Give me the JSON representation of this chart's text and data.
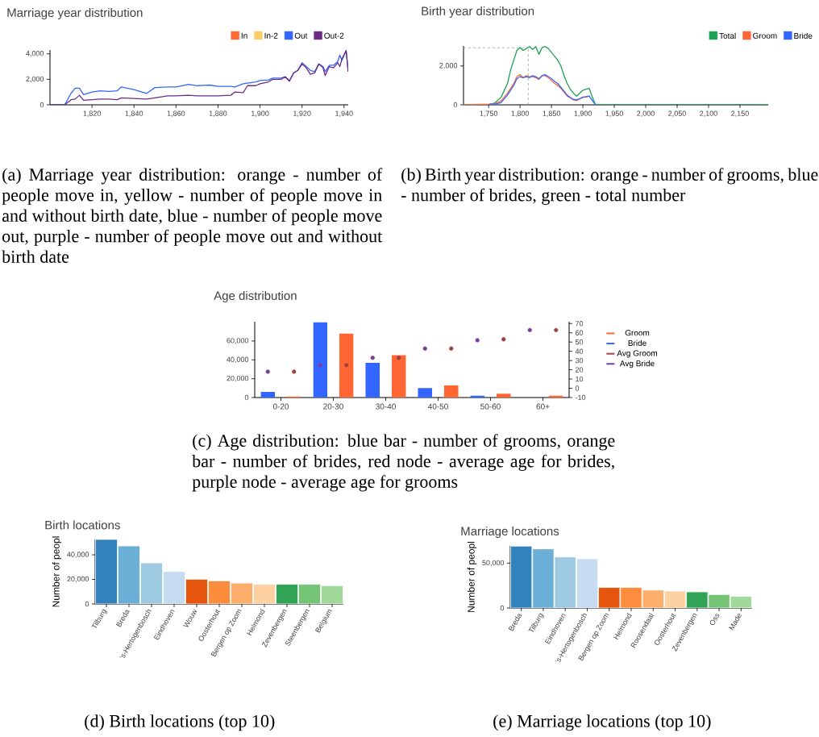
{
  "chart_data": [
    {
      "type": "line",
      "title": "Marriage year distribution",
      "legend": "top right",
      "x": [
        1800,
        1807,
        1810,
        1812,
        1814,
        1816,
        1820,
        1824,
        1828,
        1832,
        1834,
        1840,
        1846,
        1850,
        1856,
        1860,
        1866,
        1870,
        1876,
        1880,
        1886,
        1888,
        1892,
        1894,
        1898,
        1900,
        1904,
        1906,
        1910,
        1912,
        1914,
        1916,
        1918,
        1920,
        1922,
        1924,
        1926,
        1928,
        1930,
        1931,
        1933,
        1935,
        1937,
        1938,
        1939,
        1941,
        1942
      ],
      "series": [
        {
          "name": "In",
          "color": "#ff6a33",
          "values": [
            null,
            null,
            null,
            null,
            null,
            null,
            null,
            null,
            null,
            null,
            null,
            null,
            null,
            null,
            null,
            null,
            null,
            null,
            null,
            null,
            null,
            null,
            null,
            null,
            null,
            null,
            null,
            null,
            null,
            null,
            null,
            null,
            null,
            null,
            null,
            null,
            null,
            null,
            null,
            null,
            null,
            null,
            null,
            null,
            null,
            null,
            null
          ]
        },
        {
          "name": "In-2",
          "color": "#ffcc66",
          "values": [
            null,
            null,
            null,
            null,
            null,
            null,
            null,
            null,
            null,
            null,
            null,
            null,
            null,
            null,
            null,
            null,
            null,
            null,
            null,
            null,
            null,
            null,
            null,
            null,
            null,
            null,
            null,
            null,
            null,
            null,
            null,
            null,
            null,
            null,
            null,
            null,
            null,
            null,
            null,
            null,
            null,
            null,
            null,
            null,
            null,
            null,
            null
          ]
        },
        {
          "name": "Out",
          "color": "#3366ff",
          "values": [
            0,
            0,
            900,
            1300,
            1300,
            800,
            1000,
            1100,
            1050,
            1100,
            1400,
            1200,
            900,
            1350,
            1400,
            1400,
            1600,
            1500,
            1550,
            1450,
            1450,
            1400,
            1650,
            1700,
            1800,
            1900,
            1950,
            2100,
            2100,
            2200,
            1900,
            2500,
            2700,
            3300,
            3000,
            2700,
            2600,
            3200,
            3000,
            2600,
            3100,
            3100,
            3400,
            3900,
            3500,
            4250,
            2600
          ]
        },
        {
          "name": "Out-2",
          "color": "#6b2c80",
          "values": [
            0,
            0,
            400,
            450,
            750,
            350,
            400,
            450,
            450,
            400,
            550,
            500,
            450,
            550,
            700,
            700,
            750,
            700,
            700,
            700,
            750,
            1000,
            950,
            1500,
            1500,
            1650,
            1800,
            2000,
            2000,
            2200,
            1850,
            2500,
            2700,
            3200,
            2900,
            2400,
            2500,
            3200,
            2900,
            2300,
            3000,
            2900,
            3300,
            3000,
            3600,
            4250,
            2600
          ]
        }
      ],
      "xlim": [
        1800,
        1942
      ],
      "ylim": [
        0,
        4300
      ],
      "xticks": [
        {
          "value": 1820,
          "label": "1,820"
        },
        {
          "value": 1840,
          "label": "1,840"
        },
        {
          "value": 1860,
          "label": "1,860"
        },
        {
          "value": 1880,
          "label": "1,880"
        },
        {
          "value": 1900,
          "label": "1,900"
        },
        {
          "value": 1920,
          "label": "1,920"
        },
        {
          "value": 1940,
          "label": "1,940"
        }
      ],
      "yticks": [
        0,
        {
          "value": 2000,
          "label": "2,000"
        },
        {
          "value": 4000,
          "label": "4,000"
        }
      ],
      "annotations": [
        "(a) Marriage year distribution: orange - number of people move in, yellow - number of people move in and without birth date, blue - number of people move out, purple - number of people move out and without birth date"
      ]
    },
    {
      "type": "line",
      "title": "Birth year distribution",
      "legend": "top right",
      "x": [
        1710,
        1750,
        1760,
        1770,
        1780,
        1785,
        1790,
        1795,
        1800,
        1805,
        1810,
        1815,
        1820,
        1825,
        1830,
        1835,
        1840,
        1845,
        1850,
        1855,
        1860,
        1865,
        1870,
        1875,
        1880,
        1885,
        1890,
        1895,
        1900,
        1905,
        1910,
        1915,
        1920,
        2195
      ],
      "series": [
        {
          "name": "Total",
          "color": "#1ba353",
          "values": [
            0,
            0,
            100,
            400,
            1100,
            1800,
            2300,
            2800,
            2950,
            2800,
            2900,
            3000,
            2850,
            3000,
            2600,
            2950,
            3000,
            2900,
            2700,
            2500,
            2300,
            2000,
            1500,
            1100,
            800,
            600,
            450,
            600,
            750,
            800,
            850,
            400,
            0,
            0
          ]
        },
        {
          "name": "Groom",
          "color": "#ff6633",
          "values": [
            0,
            30,
            60,
            200,
            600,
            850,
            1100,
            1450,
            1550,
            1400,
            1500,
            1450,
            1450,
            1400,
            1300,
            1500,
            1500,
            1400,
            1250,
            1100,
            1000,
            850,
            650,
            450,
            350,
            250,
            220,
            300,
            380,
            400,
            450,
            null,
            null,
            null
          ]
        },
        {
          "name": "Bride",
          "color": "#3366ff",
          "values": [
            null,
            10,
            30,
            120,
            500,
            750,
            1000,
            1350,
            1450,
            1400,
            1450,
            1400,
            1500,
            1450,
            1350,
            1500,
            1550,
            1450,
            1350,
            1200,
            1100,
            900,
            700,
            500,
            380,
            280,
            250,
            320,
            400,
            420,
            450,
            220,
            0,
            null
          ]
        }
      ],
      "xlim": [
        1710,
        2195
      ],
      "ylim": [
        0,
        3030
      ],
      "xticks": [
        {
          "value": 1750,
          "label": "1,750"
        },
        {
          "value": 1800,
          "label": "1,800"
        },
        {
          "value": 1850,
          "label": "1,850"
        },
        {
          "value": 1900,
          "label": "1,900"
        },
        {
          "value": 1950,
          "label": "1,950"
        },
        {
          "value": 2000,
          "label": "2,000"
        },
        {
          "value": 2050,
          "label": "2,050"
        },
        {
          "value": 2100,
          "label": "2,100"
        },
        {
          "value": 2150,
          "label": "2,150"
        }
      ],
      "yticks": [
        0,
        {
          "value": 2000,
          "label": "2,000"
        }
      ],
      "ref_lines": [
        {
          "axis": "x",
          "value": 1813,
          "color": "#999999",
          "line_style": "dashed"
        },
        {
          "axis": "y",
          "value": 2940,
          "color": "#999999",
          "line_style": "dashed"
        }
      ],
      "annotations": [
        "(b) Birth year distribution: orange - number of grooms, blue - number of brides, green - total number"
      ]
    },
    {
      "type": "bar",
      "title": "Age distribution",
      "legend": "right",
      "categories": [
        "0-20",
        "20-30",
        "30-40",
        "40-50",
        "50-60",
        "60+"
      ],
      "series": [
        {
          "name": "Groom",
          "color": "#ff6633",
          "values": [
            1000,
            68000,
            45000,
            13000,
            4000,
            2000
          ]
        },
        {
          "name": "Bride",
          "color": "#3366ff",
          "values": [
            6000,
            80000,
            37000,
            10000,
            2000,
            0
          ]
        },
        {
          "name": "Avg Groom",
          "type": "scatter",
          "axis": "y2",
          "color": "#a0413f",
          "values": [
            18,
            25,
            33,
            43,
            53,
            63
          ]
        },
        {
          "name": "Avg Bride",
          "type": "scatter",
          "axis": "y2",
          "color": "#7b3f9a",
          "values": [
            18,
            25,
            33,
            43,
            52,
            63
          ]
        }
      ],
      "ylim": [
        0,
        80500
      ],
      "yticks": [
        0,
        {
          "value": 20000,
          "label": "20,000"
        },
        {
          "value": 40000,
          "label": "40,000"
        },
        {
          "value": 60000,
          "label": "60,000"
        }
      ],
      "y2lim": [
        -10,
        72
      ],
      "y2ticks": [
        -10,
        0,
        10,
        20,
        30,
        40,
        50,
        60,
        70
      ],
      "annotations": [
        "(c) Age distribution: blue bar - number of grooms, orange bar - number of brides, red node - average age for brides, purple node - average age for grooms"
      ]
    },
    {
      "type": "bar",
      "title": "Birth locations",
      "ylabel": "Number of peopl",
      "categories": [
        "Tilburg",
        "Breda",
        "'s-Hertogenbosch",
        "Eindhoven",
        "Wouw",
        "Oosterhout",
        "Bergen op Zoom",
        "Helmond",
        "Zevenbergen",
        "Steenbergen",
        "Belgium"
      ],
      "values": [
        52500,
        47200,
        33400,
        26400,
        20100,
        18800,
        17000,
        16000,
        16000,
        16000,
        14900
      ],
      "colors": [
        "#3182bd",
        "#6baed6",
        "#9ecae1",
        "#c6dbef",
        "#e6550d",
        "#fd8d3c",
        "#fdae6b",
        "#fdd0a2",
        "#31a354",
        "#74c476",
        "#a1d99b"
      ],
      "ylim": [
        0,
        52500
      ],
      "yticks": [
        0,
        {
          "value": 20000,
          "label": "20,000"
        },
        {
          "value": 40000,
          "label": "40,000"
        }
      ],
      "annotations": [
        "(d) Birth locations (top 10)"
      ]
    },
    {
      "type": "bar",
      "title": "Marriage locations",
      "ylabel": "Number of peopl",
      "categories": [
        "Breda",
        "Tilburg",
        "Eindhoven",
        "'s-Hertogenbosch",
        "Bergen op Zoom",
        "Helmond",
        "Roosendaal",
        "Oosterhout",
        "Zevenbergen",
        "Oss",
        "Made"
      ],
      "values": [
        69000,
        66000,
        57000,
        55000,
        23000,
        23000,
        20000,
        19000,
        18000,
        15000,
        13000
      ],
      "colors": [
        "#3182bd",
        "#6baed6",
        "#9ecae1",
        "#c6dbef",
        "#e6550d",
        "#fd8d3c",
        "#fdae6b",
        "#fdd0a2",
        "#31a354",
        "#74c476",
        "#a1d99b"
      ],
      "ylim": [
        0,
        69300
      ],
      "yticks": [
        0,
        {
          "value": 50000,
          "label": "50,000"
        }
      ],
      "annotations": [
        "(e) Marriage locations (top 10)"
      ]
    }
  ]
}
